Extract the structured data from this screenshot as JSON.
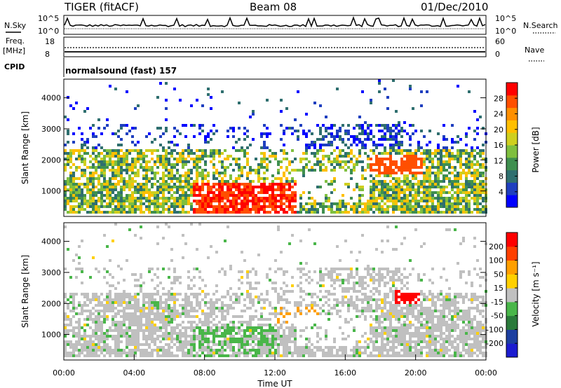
{
  "header": {
    "title": "TIGER (fitACF)",
    "beam": "Beam 08",
    "date": "01/Dec/2010"
  },
  "summary": {
    "nsky_label": "N.Sky",
    "nsky_ticks": [
      "10^5",
      "10^0"
    ],
    "nsearch_label": "N.Search",
    "nsearch_ticks": [
      "10^5",
      "10^0"
    ],
    "freq_label": "Freq.",
    "freq_unit": "[MHz]",
    "freq_ticks": [
      "18",
      "8"
    ],
    "nave_label": "Nave",
    "nave_ticks": [
      "60",
      "0"
    ],
    "cpid_label": "CPID",
    "cpid_value": "normalsound (fast) 157"
  },
  "colors": {
    "power": [
      "#0000ff",
      "#1f3fbf",
      "#2f6f6f",
      "#3f8f4f",
      "#7fbf3f",
      "#cfcf1f",
      "#ffbf00",
      "#ff8f00",
      "#ff4f00",
      "#ff0000"
    ],
    "velocity": [
      "#1c1cd0",
      "#1c3fa0",
      "#2a7a3a",
      "#49b649",
      "#c0c0c0",
      "#ffd000",
      "#ff9f00",
      "#ff4000",
      "#ff0000"
    ]
  },
  "chart_data": [
    {
      "type": "heatmap",
      "name": "power",
      "ylabel": "Slant Range [km]",
      "yticks": [
        "1000",
        "2000",
        "3000",
        "4000"
      ],
      "ylim": [
        180,
        4600
      ],
      "colorbar_label": "Power [dB]",
      "colorbar_ticks": [
        "4",
        "8",
        "12",
        "16",
        "20",
        "24",
        "28"
      ],
      "colorbar_range": [
        0,
        32
      ]
    },
    {
      "type": "heatmap",
      "name": "velocity",
      "ylabel": "Slant Range [km]",
      "yticks": [
        "1000",
        "2000",
        "3000",
        "4000"
      ],
      "ylim": [
        180,
        4600
      ],
      "xlabel": "Time UT",
      "xticks": [
        "00:00",
        "04:00",
        "08:00",
        "12:00",
        "16:00",
        "20:00",
        "00:00"
      ],
      "colorbar_label": "Velocity [m s⁻¹]",
      "colorbar_ticks": [
        "200",
        "100",
        "50",
        "15",
        "-15",
        "-50",
        "-100",
        "-200"
      ]
    }
  ]
}
